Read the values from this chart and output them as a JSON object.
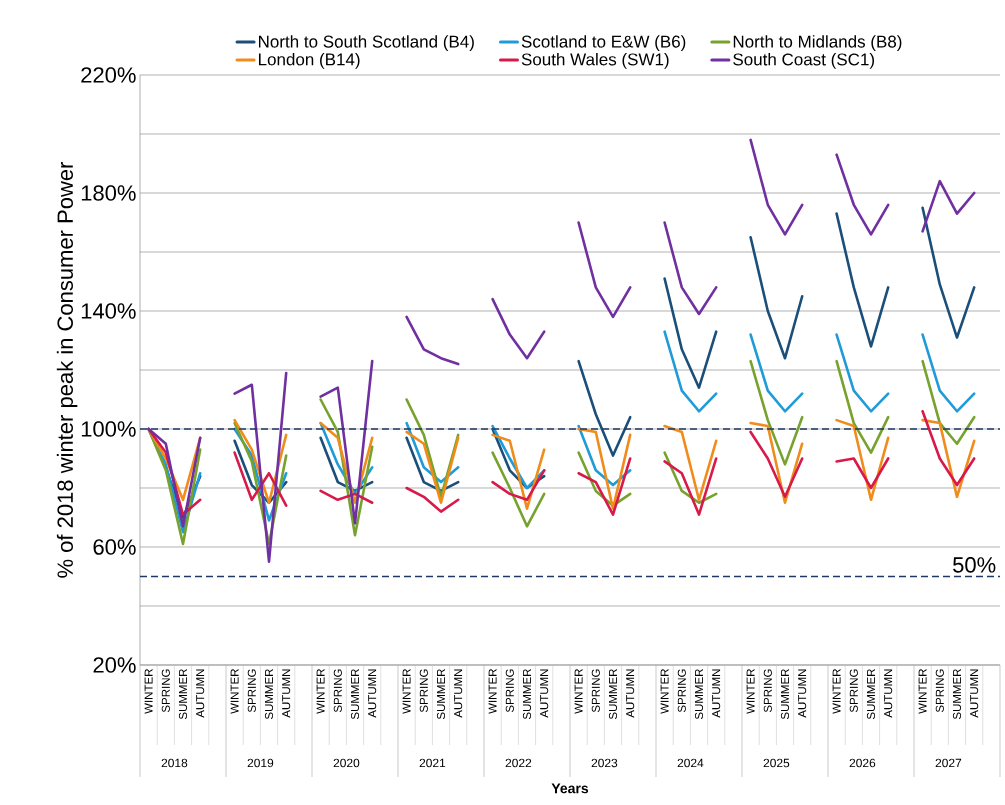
{
  "chart_data": {
    "type": "line",
    "xlabel": "Years",
    "ylabel": "% of 2018 winter peak in Consumer Power",
    "categories": [
      "WINTER",
      "SPRING",
      "SUMMER",
      "AUTUMN",
      null,
      "WINTER",
      "SPRING",
      "SUMMER",
      "AUTUMN",
      null,
      "WINTER",
      "SPRING",
      "SUMMER",
      "AUTUMN",
      null,
      "WINTER",
      "SPRING",
      "SUMMER",
      "AUTUMN",
      null,
      "WINTER",
      "SPRING",
      "SUMMER",
      "AUTUMN",
      null,
      "WINTER",
      "SPRING",
      "SUMMER",
      "AUTUMN",
      null,
      "WINTER",
      "SPRING",
      "SUMMER",
      "AUTUMN",
      null,
      "WINTER",
      "SPRING",
      "SUMMER",
      "AUTUMN",
      null,
      "WINTER",
      "SPRING",
      "SUMMER",
      "AUTUMN",
      null,
      "WINTER",
      "SPRING",
      "SUMMER",
      "AUTUMN",
      null
    ],
    "series": [
      {
        "name": "North to South Scotland (B4)",
        "color": "#1b4f7a",
        "values": [
          100,
          87,
          70,
          84,
          null,
          96,
          81,
          75,
          82,
          null,
          97,
          82,
          79,
          82,
          null,
          97,
          82,
          79,
          82,
          null,
          100,
          86,
          80,
          84,
          null,
          123,
          105,
          91,
          104,
          null,
          151,
          127,
          114,
          133,
          null,
          165,
          140,
          124,
          145,
          null,
          173,
          148,
          128,
          148,
          null,
          175,
          149,
          131,
          148,
          null
        ]
      },
      {
        "name": "Scotland to E&W (B6)",
        "color": "#1f9bd7",
        "values": [
          100,
          88,
          65,
          85,
          null,
          100,
          91,
          69,
          85,
          null,
          102,
          88,
          78,
          87,
          null,
          102,
          87,
          82,
          87,
          null,
          101,
          90,
          80,
          86,
          null,
          101,
          86,
          81,
          86,
          null,
          133,
          113,
          106,
          112,
          null,
          132,
          113,
          106,
          112,
          null,
          132,
          113,
          106,
          112,
          null,
          132,
          113,
          106,
          112,
          null
        ]
      },
      {
        "name": "North to Midlands (B8)",
        "color": "#77a22d",
        "values": [
          100,
          86,
          61,
          93,
          null,
          102,
          89,
          61,
          91,
          null,
          110,
          99,
          64,
          94,
          null,
          110,
          98,
          77,
          98,
          null,
          92,
          80,
          67,
          78,
          null,
          92,
          79,
          74,
          78,
          null,
          92,
          79,
          75,
          78,
          null,
          123,
          103,
          88,
          104,
          null,
          123,
          102,
          92,
          104,
          null,
          123,
          102,
          95,
          104,
          null
        ]
      },
      {
        "name": "London (B14)",
        "color": "#f08c1c",
        "values": [
          100,
          90,
          76,
          97,
          null,
          103,
          93,
          75,
          98,
          null,
          102,
          97,
          75,
          97,
          null,
          99,
          95,
          75,
          97,
          null,
          98,
          96,
          73,
          93,
          null,
          100,
          99,
          73,
          98,
          null,
          101,
          99,
          76,
          96,
          null,
          102,
          101,
          75,
          95,
          null,
          103,
          101,
          76,
          97,
          null,
          103,
          102,
          77,
          96,
          null
        ]
      },
      {
        "name": "South Wales (SW1)",
        "color": "#d81a4b",
        "values": [
          100,
          92,
          71,
          76,
          null,
          92,
          76,
          85,
          74,
          null,
          79,
          76,
          78,
          75,
          null,
          80,
          77,
          72,
          76,
          null,
          82,
          78,
          76,
          86,
          null,
          85,
          82,
          71,
          90,
          null,
          89,
          85,
          71,
          90,
          null,
          99,
          90,
          77,
          90,
          null,
          89,
          90,
          80,
          90,
          null,
          106,
          90,
          81,
          90,
          null
        ]
      },
      {
        "name": "South Coast (SC1)",
        "color": "#7030a0",
        "values": [
          100,
          95,
          67,
          97,
          null,
          112,
          115,
          55,
          119,
          null,
          111,
          114,
          68,
          123,
          null,
          138,
          127,
          124,
          122,
          null,
          144,
          132,
          124,
          133,
          null,
          170,
          148,
          138,
          148,
          null,
          170,
          148,
          139,
          148,
          null,
          198,
          176,
          166,
          176,
          null,
          193,
          176,
          166,
          176,
          null,
          167,
          184,
          173,
          180,
          null
        ]
      }
    ],
    "ylim": [
      20,
      220
    ],
    "yticks": [
      {
        "value": 20,
        "label": "20%"
      },
      {
        "value": 40,
        "label": null
      },
      {
        "value": 60,
        "label": "60%"
      },
      {
        "value": 80,
        "label": null
      },
      {
        "value": 100,
        "label": "100%"
      },
      {
        "value": 120,
        "label": null
      },
      {
        "value": 140,
        "label": "140%"
      },
      {
        "value": 160,
        "label": null
      },
      {
        "value": 180,
        "label": "180%"
      },
      {
        "value": 200,
        "label": null
      },
      {
        "value": 220,
        "label": "220%"
      }
    ],
    "grid": "y",
    "legend": "top",
    "marker": "none",
    "line_style": "solid",
    "ref_lines": [
      {
        "axis": "y",
        "value": 100,
        "color": "#1f3864",
        "line_style": "dashed"
      },
      {
        "axis": "y",
        "value": 50,
        "label": "50%",
        "color": "#1f3864",
        "line_style": "dashed"
      }
    ],
    "annotations": [
      "2018",
      "2019",
      "2020",
      "2021",
      "2022",
      "2023",
      "2024",
      "2025",
      "2026",
      "2027"
    ]
  }
}
